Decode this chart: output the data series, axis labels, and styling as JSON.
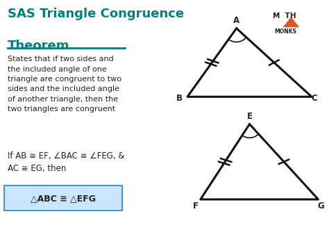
{
  "title_line1": "SAS Triangle Congruence",
  "title_line2": "Theorem",
  "title_color": "#008080",
  "underline_color": "#008080",
  "body_text": "States that if two sides and\nthe included angle of one\ntriangle are congruent to two\nsides and the included angle\nof another triangle, then the\ntwo triangles are congruent",
  "condition_text": "If AB ≅ EF, ∠BAC ≅ ∠FEG, &\nAC ≅ EG, then",
  "conclusion_text": "△ABC ≅ △EFG",
  "conclusion_box_color": "#cce5ff",
  "conclusion_box_border": "#4499cc",
  "background_color": "#ffffff",
  "text_color": "#222222",
  "tri1": {
    "A": [
      0.72,
      0.88
    ],
    "B": [
      0.57,
      0.58
    ],
    "C": [
      0.95,
      0.58
    ],
    "labels": {
      "A": [
        0.72,
        0.915
      ],
      "B": [
        0.545,
        0.572
      ],
      "C": [
        0.958,
        0.572
      ]
    }
  },
  "tri2": {
    "E": [
      0.76,
      0.46
    ],
    "F": [
      0.61,
      0.13
    ],
    "G": [
      0.97,
      0.13
    ],
    "labels": {
      "E": [
        0.76,
        0.495
      ],
      "F": [
        0.595,
        0.1
      ],
      "G": [
        0.978,
        0.1
      ]
    }
  },
  "line_color": "#111111",
  "line_width": 2.2,
  "logo_tri_color": "#e05a20",
  "mathmonks_color": "#222222"
}
